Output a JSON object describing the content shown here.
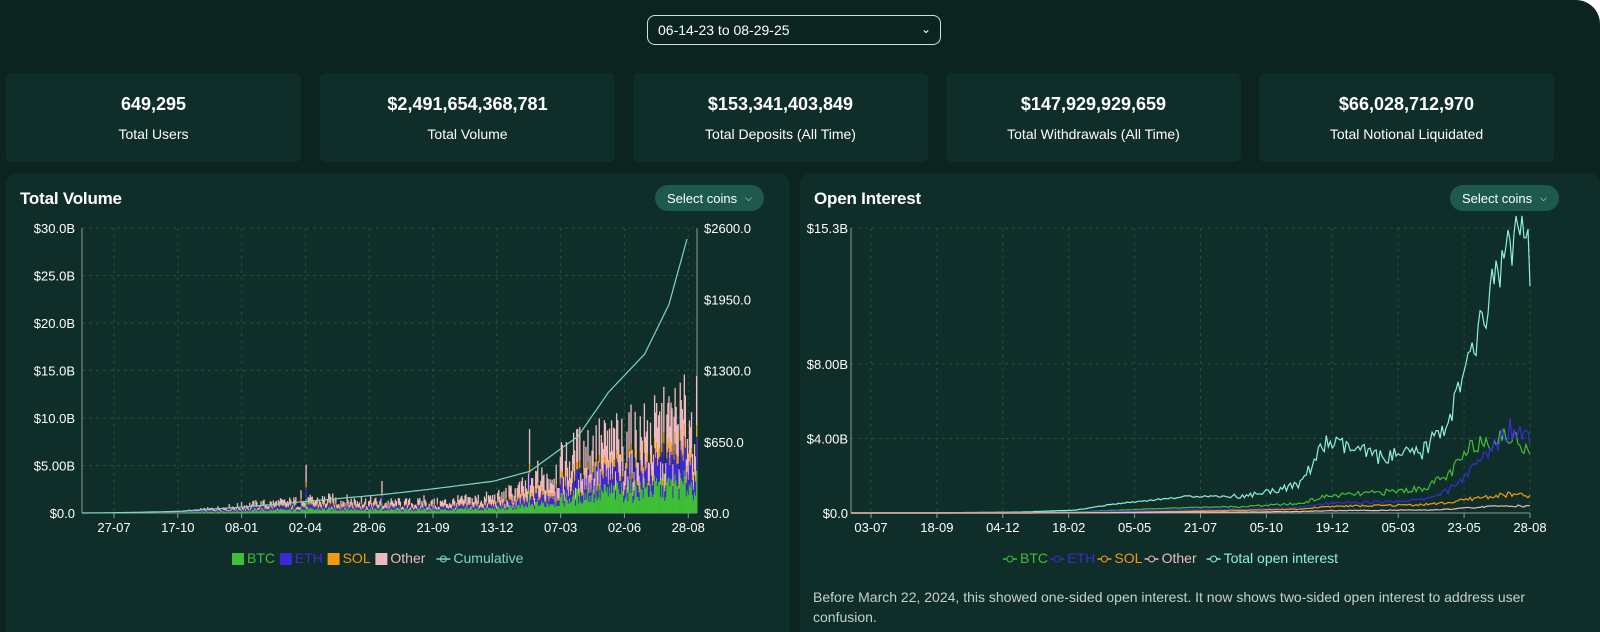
{
  "date_range": {
    "value": "06-14-23 to 08-29-25"
  },
  "stats": [
    {
      "value": "649,295",
      "label": "Total Users"
    },
    {
      "value": "$2,491,654,368,781",
      "label": "Total Volume"
    },
    {
      "value": "$153,341,403,849",
      "label": "Total Deposits (All Time)"
    },
    {
      "value": "$147,929,929,659",
      "label": "Total Withdrawals (All Time)"
    },
    {
      "value": "$66,028,712,970",
      "label": "Total Notional Liquidated"
    }
  ],
  "colors": {
    "btc": "#3fbf37",
    "eth": "#3b2bd4",
    "sol": "#f29b0c",
    "other": "#f0b9c0",
    "cumulative": "#7fd6c2",
    "total_oi": "#8ff0d8"
  },
  "volume_panel": {
    "title": "Total Volume",
    "select_label": "Select coins",
    "select_icon": "chevron-down-icon"
  },
  "oi_panel": {
    "title": "Open Interest",
    "select_label": "Select coins",
    "select_icon": "chevron-down-icon"
  },
  "note": "Before March 22, 2024, this showed one-sided open interest. It now shows two-sided open interest to address user confusion.",
  "chart_data": [
    {
      "type": "bar",
      "title": "Total Volume",
      "stacked": true,
      "x_ticks": [
        "27-07",
        "17-10",
        "08-01",
        "02-04",
        "28-06",
        "21-09",
        "13-12",
        "07-03",
        "02-06",
        "28-08"
      ],
      "y_ticks": [
        "$0.0",
        "$5.00B",
        "$10.0B",
        "$15.0B",
        "$20.0B",
        "$25.0B",
        "$30.0B"
      ],
      "y2_ticks": [
        "$0.0",
        "$650.0",
        "$1300.0",
        "$1950.0",
        "$2600.0"
      ],
      "ylim": [
        0,
        30
      ],
      "y2lim": [
        0,
        2600
      ],
      "grid": true,
      "legend_position": "bottom",
      "series": [
        {
          "name": "BTC",
          "type": "bar",
          "values": [
            0.02,
            0.02,
            0.05,
            0.3,
            0.5,
            0.4,
            0.4,
            0.6,
            1.0,
            2.4,
            2.8,
            3.2,
            3.6
          ]
        },
        {
          "name": "ETH",
          "type": "bar",
          "values": [
            0.01,
            0.01,
            0.04,
            0.3,
            0.4,
            0.3,
            0.3,
            0.4,
            0.8,
            1.9,
            1.9,
            2.3,
            2.9
          ]
        },
        {
          "name": "SOL",
          "type": "bar",
          "values": [
            0.0,
            0.0,
            0.01,
            0.1,
            0.2,
            0.1,
            0.1,
            0.2,
            0.4,
            0.7,
            0.7,
            0.9,
            1.0
          ]
        },
        {
          "name": "Other",
          "type": "bar",
          "values": [
            0.01,
            0.01,
            0.05,
            0.4,
            0.6,
            0.5,
            0.5,
            0.8,
            1.6,
            3.2,
            3.2,
            3.6,
            4.2
          ]
        },
        {
          "name": "Cumulative",
          "type": "line",
          "axis": "right",
          "values": [
            0,
            5,
            15,
            60,
            120,
            170,
            220,
            290,
            380,
            700,
            1100,
            1450,
            1900,
            2500
          ]
        }
      ],
      "x_positions": [
        0,
        0.08,
        0.16,
        0.28,
        0.4,
        0.5,
        0.58,
        0.68,
        0.74,
        0.82,
        0.87,
        0.93,
        0.97,
        1.0
      ]
    },
    {
      "type": "line",
      "title": "Open Interest",
      "x_ticks": [
        "03-07",
        "18-09",
        "04-12",
        "18-02",
        "05-05",
        "21-07",
        "05-10",
        "19-12",
        "05-03",
        "23-05",
        "28-08"
      ],
      "y_ticks": [
        "$0.0",
        "$4.00B",
        "$8.00B",
        "$15.3B"
      ],
      "ylim": [
        0,
        15.3
      ],
      "grid": true,
      "legend_position": "bottom",
      "series": [
        {
          "name": "BTC",
          "values": [
            0,
            0,
            0.02,
            0.05,
            0.15,
            0.3,
            0.35,
            0.5,
            0.9,
            1.1,
            1.3,
            2.0,
            3.8,
            4.1,
            3.5
          ]
        },
        {
          "name": "ETH",
          "values": [
            0,
            0,
            0.01,
            0.03,
            0.1,
            0.2,
            0.2,
            0.3,
            0.5,
            0.6,
            0.7,
            1.2,
            2.5,
            4.6,
            4.2
          ]
        },
        {
          "name": "SOL",
          "values": [
            0,
            0,
            0,
            0.01,
            0.03,
            0.1,
            0.15,
            0.2,
            0.35,
            0.4,
            0.45,
            0.55,
            0.8,
            1.0,
            0.9
          ]
        },
        {
          "name": "Other",
          "values": [
            0,
            0,
            0,
            0.01,
            0.02,
            0.05,
            0.05,
            0.08,
            0.12,
            0.15,
            0.15,
            0.2,
            0.3,
            0.4,
            0.35
          ]
        },
        {
          "name": "Total open interest",
          "values": [
            0,
            0.01,
            0.05,
            0.15,
            0.5,
            0.9,
            0.9,
            1.5,
            3.8,
            3.0,
            3.2,
            5.0,
            9.0,
            15.0,
            13.5
          ]
        }
      ],
      "x_positions": [
        0,
        0.12,
        0.25,
        0.33,
        0.39,
        0.5,
        0.58,
        0.66,
        0.7,
        0.78,
        0.84,
        0.88,
        0.92,
        0.97,
        1.0
      ]
    }
  ]
}
